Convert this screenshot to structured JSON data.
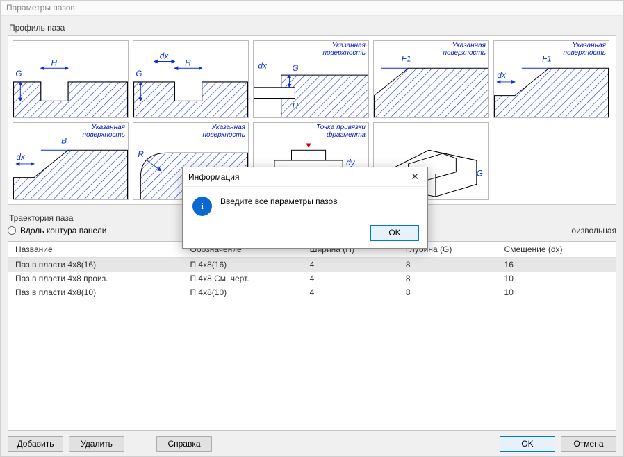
{
  "window": {
    "title": "Параметры пазов"
  },
  "profile": {
    "label": "Профиль паза",
    "thumbs": [
      {
        "kind": "rect",
        "caption": "",
        "dims": [
          "G",
          "H"
        ]
      },
      {
        "kind": "rect_dx",
        "caption": "",
        "dims": [
          "G",
          "dx",
          "H"
        ]
      },
      {
        "kind": "slot",
        "caption": "Указанная\nповерхность",
        "dims": [
          "dx",
          "G",
          "H"
        ]
      },
      {
        "kind": "chamfer",
        "caption": "Указанная\nповерхность",
        "dims": [
          "F1"
        ]
      },
      {
        "kind": "chamferdx",
        "caption": "Указанная\nповерхность",
        "dims": [
          "dx",
          "F1"
        ]
      },
      {
        "kind": "chamferB",
        "caption": "Указанная\nповерхность",
        "dims": [
          "dx",
          "B"
        ]
      },
      {
        "kind": "round",
        "caption": "Указанная\nповерхность",
        "dims": [
          "R"
        ]
      },
      {
        "kind": "frag",
        "caption": "Точка привязки\nфрагмента",
        "dims": [
          "dy"
        ]
      },
      {
        "kind": "iso",
        "caption": "",
        "dims": [
          "G"
        ]
      }
    ]
  },
  "trajectory": {
    "label": "Траектория паза",
    "option1": "Вдоль контура панели",
    "tail": "оизвольная"
  },
  "table": {
    "columns": [
      "Название",
      "Обозначение",
      "Ширина (H)",
      "Глубина (G)",
      "Смещение (dx)"
    ],
    "rows": [
      [
        "Паз в пласти 4х8(16)",
        "П 4х8(16)",
        "4",
        "8",
        "16"
      ],
      [
        "Паз в пласти 4х8 произ.",
        "П 4х8 См. черт.",
        "4",
        "8",
        "10"
      ],
      [
        "Паз в пласти 4х8(10)",
        "П 4х8(10)",
        "4",
        "8",
        "10"
      ]
    ],
    "selected_row": 0
  },
  "buttons": {
    "add": "Добавить",
    "del": "Удалить",
    "help": "Справка",
    "ok": "OK",
    "cancel": "Отмена"
  },
  "modal": {
    "title": "Информация",
    "text": "Введите все параметры пазов",
    "ok": "OK"
  },
  "colors": {
    "hatch": "#0a2ee0",
    "dim": "#0a2ee0"
  }
}
